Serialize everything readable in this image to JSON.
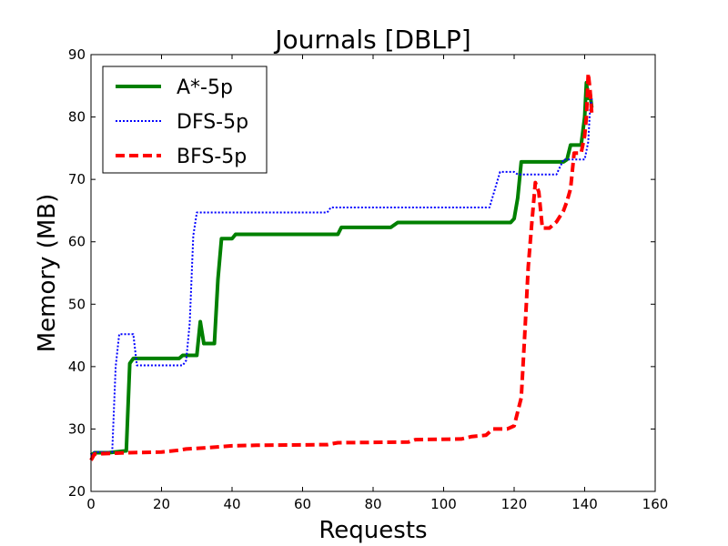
{
  "chart_data": {
    "type": "line",
    "title": "Journals [DBLP]",
    "xlabel": "Requests",
    "ylabel": "Memory (MB)",
    "xlim": [
      0,
      160
    ],
    "ylim": [
      20,
      90
    ],
    "xticks": [
      0,
      20,
      40,
      60,
      80,
      100,
      120,
      140,
      160
    ],
    "yticks": [
      20,
      30,
      40,
      50,
      60,
      70,
      80,
      90
    ],
    "grid": false,
    "legend": "top-left",
    "series": [
      {
        "name": "A*-5p",
        "color": "#008000",
        "style": "solid",
        "points": [
          [
            0,
            25.8
          ],
          [
            1,
            26.2
          ],
          [
            5,
            26.2
          ],
          [
            10,
            26.5
          ],
          [
            11,
            40.5
          ],
          [
            12,
            41.3
          ],
          [
            25,
            41.3
          ],
          [
            26,
            41.8
          ],
          [
            28,
            41.8
          ],
          [
            30,
            41.8
          ],
          [
            31,
            47.2
          ],
          [
            32,
            43.7
          ],
          [
            35,
            43.7
          ],
          [
            36,
            54
          ],
          [
            37,
            60.5
          ],
          [
            40,
            60.5
          ],
          [
            41,
            61.2
          ],
          [
            70,
            61.2
          ],
          [
            71,
            62.3
          ],
          [
            85,
            62.3
          ],
          [
            87,
            63.1
          ],
          [
            119,
            63.1
          ],
          [
            120,
            63.7
          ],
          [
            121,
            67
          ],
          [
            122,
            72.8
          ],
          [
            134,
            72.8
          ],
          [
            135,
            73.2
          ],
          [
            136,
            75.5
          ],
          [
            139,
            75.5
          ],
          [
            140,
            80
          ],
          [
            140.5,
            85.5
          ],
          [
            141,
            83
          ],
          [
            141.5,
            84
          ],
          [
            142,
            81.5
          ]
        ]
      },
      {
        "name": "DFS-5p",
        "color": "#0000ff",
        "style": "dotted",
        "points": [
          [
            0,
            25.8
          ],
          [
            1,
            26.3
          ],
          [
            6,
            26.3
          ],
          [
            7,
            40
          ],
          [
            8,
            45.2
          ],
          [
            12,
            45.2
          ],
          [
            13,
            40.2
          ],
          [
            26,
            40.2
          ],
          [
            27,
            41
          ],
          [
            28,
            47
          ],
          [
            29,
            61
          ],
          [
            30,
            64.7
          ],
          [
            67,
            64.7
          ],
          [
            68,
            65.5
          ],
          [
            113,
            65.5
          ],
          [
            116,
            71.2
          ],
          [
            120,
            71.2
          ],
          [
            121,
            70.8
          ],
          [
            132,
            70.8
          ],
          [
            134,
            73.2
          ],
          [
            140,
            73.2
          ],
          [
            141,
            76
          ],
          [
            141.5,
            81
          ],
          [
            142,
            83
          ]
        ]
      },
      {
        "name": "BFS-5p",
        "color": "#ff0000",
        "style": "dashed",
        "points": [
          [
            0,
            25
          ],
          [
            1,
            26
          ],
          [
            10,
            26.2
          ],
          [
            20,
            26.3
          ],
          [
            25,
            26.6
          ],
          [
            27,
            26.8
          ],
          [
            33,
            27
          ],
          [
            40,
            27.3
          ],
          [
            47,
            27.4
          ],
          [
            67,
            27.5
          ],
          [
            70,
            27.8
          ],
          [
            90,
            27.9
          ],
          [
            92,
            28.3
          ],
          [
            105,
            28.4
          ],
          [
            108,
            28.8
          ],
          [
            112,
            29
          ],
          [
            114,
            30
          ],
          [
            118,
            30
          ],
          [
            120,
            30.5
          ],
          [
            122,
            35
          ],
          [
            123,
            45
          ],
          [
            124,
            56
          ],
          [
            125,
            63
          ],
          [
            126,
            69.5
          ],
          [
            127,
            68
          ],
          [
            128,
            62.2
          ],
          [
            130,
            62.2
          ],
          [
            132,
            63.2
          ],
          [
            134,
            65
          ],
          [
            135,
            66.5
          ],
          [
            136,
            68.5
          ],
          [
            137,
            74.2
          ],
          [
            139,
            74.2
          ],
          [
            140,
            77
          ],
          [
            140.5,
            80
          ],
          [
            141,
            87
          ],
          [
            141.5,
            84.5
          ],
          [
            142,
            80.5
          ]
        ]
      }
    ]
  }
}
